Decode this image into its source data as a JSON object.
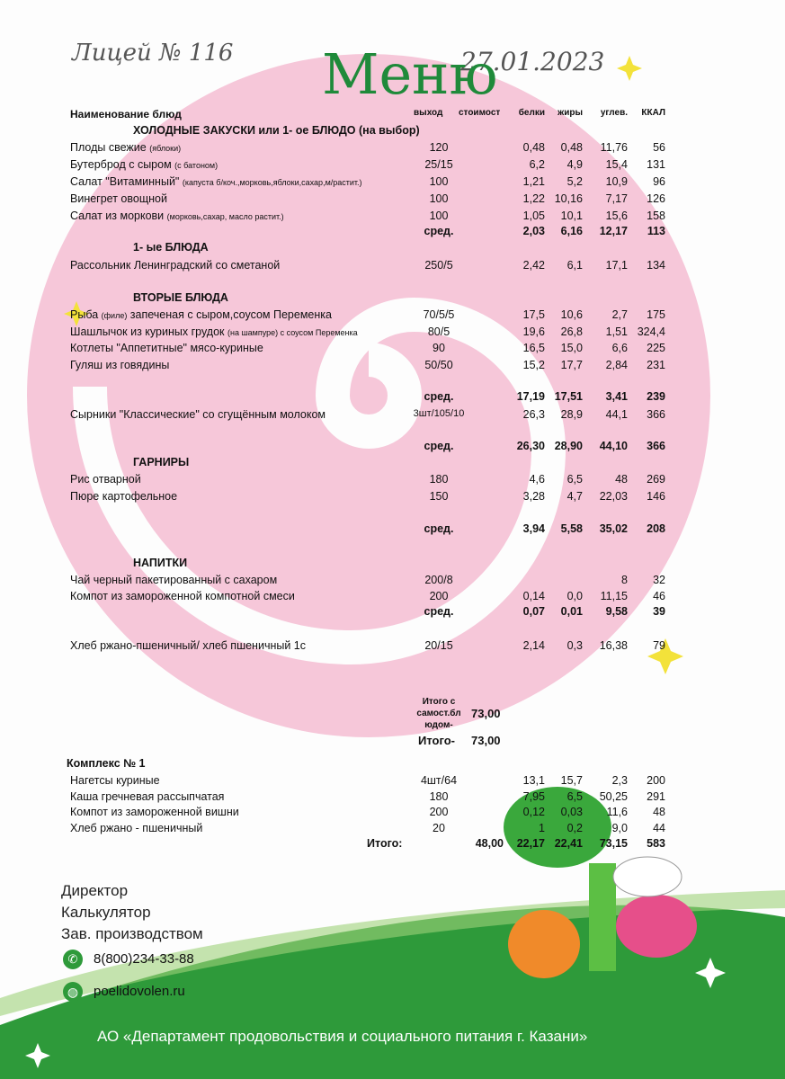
{
  "handwritten": {
    "school": "Лицей № 116",
    "date": "27.01.2023"
  },
  "title": "Меню",
  "header": {
    "name": "Наименование  блюд",
    "out": "выход",
    "cost": "стоимост",
    "b": "белки",
    "j": "жиры",
    "u": "углев.",
    "k": "ККАЛ"
  },
  "rows": [
    {
      "type": "section",
      "name": "ХОЛОДНЫЕ  ЗАКУСКИ  или 1- ое БЛЮДО (на выбор)"
    },
    {
      "name": "Плоды свежие",
      "note": "(яблоки)",
      "out": "120",
      "b": "0,48",
      "j": "0,48",
      "u": "11,76",
      "k": "56"
    },
    {
      "name": "Бутерброд с сыром",
      "note": "(с батоном)",
      "out": "25/15",
      "b": "6,2",
      "j": "4,9",
      "u": "15,4",
      "k": "131"
    },
    {
      "name": "Салат \"Витаминный\"",
      "note": "(капуста б/коч.,морковь,яблоки,сахар,м/растит.)",
      "out": "100",
      "b": "1,21",
      "j": "5,2",
      "u": "10,9",
      "k": "96"
    },
    {
      "name": "Винегрет овощной",
      "out": "100",
      "b": "1,22",
      "j": "10,16",
      "u": "7,17",
      "k": "126"
    },
    {
      "name": "Салат из моркови",
      "note": "(морковь,сахар, масло растит.)",
      "out": "100",
      "b": "1,05",
      "j": "10,1",
      "u": "15,6",
      "k": "158"
    },
    {
      "type": "avg",
      "out": "сред.",
      "b": "2,03",
      "j": "6,16",
      "u": "12,17",
      "k": "113"
    },
    {
      "type": "section",
      "name": "1- ые БЛЮДА"
    },
    {
      "name": "Рассольник Ленинградский со сметаной",
      "out": "250/5",
      "b": "2,42",
      "j": "6,1",
      "u": "17,1",
      "k": "134"
    },
    {
      "type": "section",
      "name": "ВТОРЫЕ  БЛЮДА"
    },
    {
      "name": "Рыба",
      "note": "(филе)",
      "name2": " запеченая с сыром,соусом Переменка",
      "out": "70/5/5",
      "b": "17,5",
      "j": "10,6",
      "u": "2,7",
      "k": "175"
    },
    {
      "name": "Шашлычок из куриных грудок",
      "note": "(на шампуре) с соусом Переменка",
      "out": "80/5",
      "b": "19,6",
      "j": "26,8",
      "u": "1,51",
      "k": "324,4"
    },
    {
      "name": "Котлеты \"Аппетитные\" мясо-куриные",
      "out": "90",
      "b": "16,5",
      "j": "15,0",
      "u": "6,6",
      "k": "225"
    },
    {
      "name": "Гуляш из говядины",
      "out": "50/50",
      "b": "15,2",
      "j": "17,7",
      "u": "2,84",
      "k": "231"
    },
    {
      "type": "avg",
      "out": "сред.",
      "b": "17,19",
      "j": "17,51",
      "u": "3,41",
      "k": "239"
    },
    {
      "name": "Сырники \"Классические\" со сгущённым молоком",
      "out": "3шт/105/10",
      "b": "26,3",
      "j": "28,9",
      "u": "44,1",
      "k": "366"
    },
    {
      "type": "avg",
      "out": "сред.",
      "b": "26,30",
      "j": "28,90",
      "u": "44,10",
      "k": "366"
    },
    {
      "type": "section",
      "name": "ГАРНИРЫ"
    },
    {
      "name": "Рис отварной",
      "out": "180",
      "b": "4,6",
      "j": "6,5",
      "u": "48",
      "k": "269"
    },
    {
      "name": "Пюре картофельное",
      "out": "150",
      "b": "3,28",
      "j": "4,7",
      "u": "22,03",
      "k": "146"
    },
    {
      "type": "avg",
      "out": "сред.",
      "b": "3,94",
      "j": "5,58",
      "u": "35,02",
      "k": "208"
    },
    {
      "type": "section",
      "name": "НАПИТКИ"
    },
    {
      "name": "Чай черный пакетированный с сахаром",
      "out": "200/8",
      "u": "8",
      "k": "32"
    },
    {
      "name": "Компот из замороженной компотной смеси",
      "out": "200",
      "b": "0,14",
      "j": "0,0",
      "u": "11,15",
      "k": "46"
    },
    {
      "type": "avg",
      "out": "сред.",
      "b": "0,07",
      "j": "0,01",
      "u": "9,58",
      "k": "39"
    },
    {
      "name": "Хлеб ржано-пшеничный/ хлеб пшеничный 1с",
      "out": "20/15",
      "b": "2,14",
      "j": "0,3",
      "u": "16,38",
      "k": "79"
    }
  ],
  "totals": {
    "self_label": "Итого с самост.бл юдом-",
    "self_value": "73,00",
    "total_label": "Итого-",
    "total_value": "73,00"
  },
  "complex": {
    "title": "Комплекс № 1",
    "rows": [
      {
        "name": "Нагетсы куриные",
        "out": "4шт/64",
        "b": "13,1",
        "j": "15,7",
        "u": "2,3",
        "k": "200"
      },
      {
        "name": "Каша гречневая рассыпчатая",
        "out": "180",
        "b": "7,95",
        "j": "6,5",
        "u": "50,25",
        "k": "291"
      },
      {
        "name": "Компот из замороженной вишни",
        "out": "200",
        "b": "0,12",
        "j": "0,03",
        "u": "11,6",
        "k": "48"
      },
      {
        "name": "Хлеб ржано - пшеничный",
        "out": "20",
        "b": "1",
        "j": "0,2",
        "u": "9,0",
        "k": "44"
      }
    ],
    "total": {
      "label": "Итого:",
      "cost": "48,00",
      "b": "22,17",
      "j": "22,41",
      "u": "73,15",
      "k": "583"
    }
  },
  "signatures": {
    "director": "Директор",
    "calculator": "Калькулятор",
    "production": "Зав. производством"
  },
  "contacts": {
    "phone": "8(800)234-33-88",
    "site": "poelidovolen.ru"
  },
  "footer": "АО «Департамент продовольствия и социального питания г. Казани»",
  "colors": {
    "pink": "#f6c7d9",
    "green": "#2e9a3a",
    "title": "#1f8a3a",
    "star": "#f3e23a"
  }
}
